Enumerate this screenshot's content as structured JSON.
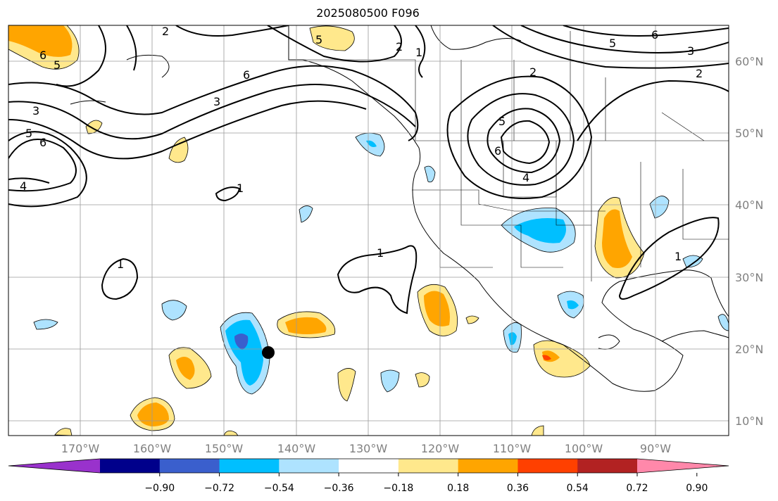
{
  "title": "2025080500 F096",
  "lon_labels": [
    "170°W",
    "160°W",
    "150°W",
    "140°W",
    "130°W",
    "120°W",
    "110°W",
    "100°W",
    "90°W"
  ],
  "lat_labels": [
    "60°N",
    "50°N",
    "40°N",
    "30°N",
    "20°N",
    "10°N"
  ],
  "colorbar": {
    "colors": [
      "#9932cc",
      "#00008b",
      "#3a5fcd",
      "#00bfff",
      "#aee3ff",
      "#ffffff",
      "#ffe88c",
      "#ffa500",
      "#ff4000",
      "#b22222",
      "#ff88aa"
    ],
    "tick_labels": [
      "−0.90",
      "−0.72",
      "−0.54",
      "−0.36",
      "−0.18",
      "0.18",
      "0.36",
      "0.54",
      "0.72",
      "0.90"
    ]
  },
  "contour_labels": [
    "2",
    "5",
    "6",
    "5",
    "3",
    "6",
    "3",
    "5",
    "6",
    "4",
    "1",
    "1",
    "1",
    "2",
    "1",
    "5",
    "6",
    "4",
    "2",
    "6",
    "5",
    "3",
    "2",
    "1"
  ],
  "marker": {
    "label": "storm-position"
  }
}
